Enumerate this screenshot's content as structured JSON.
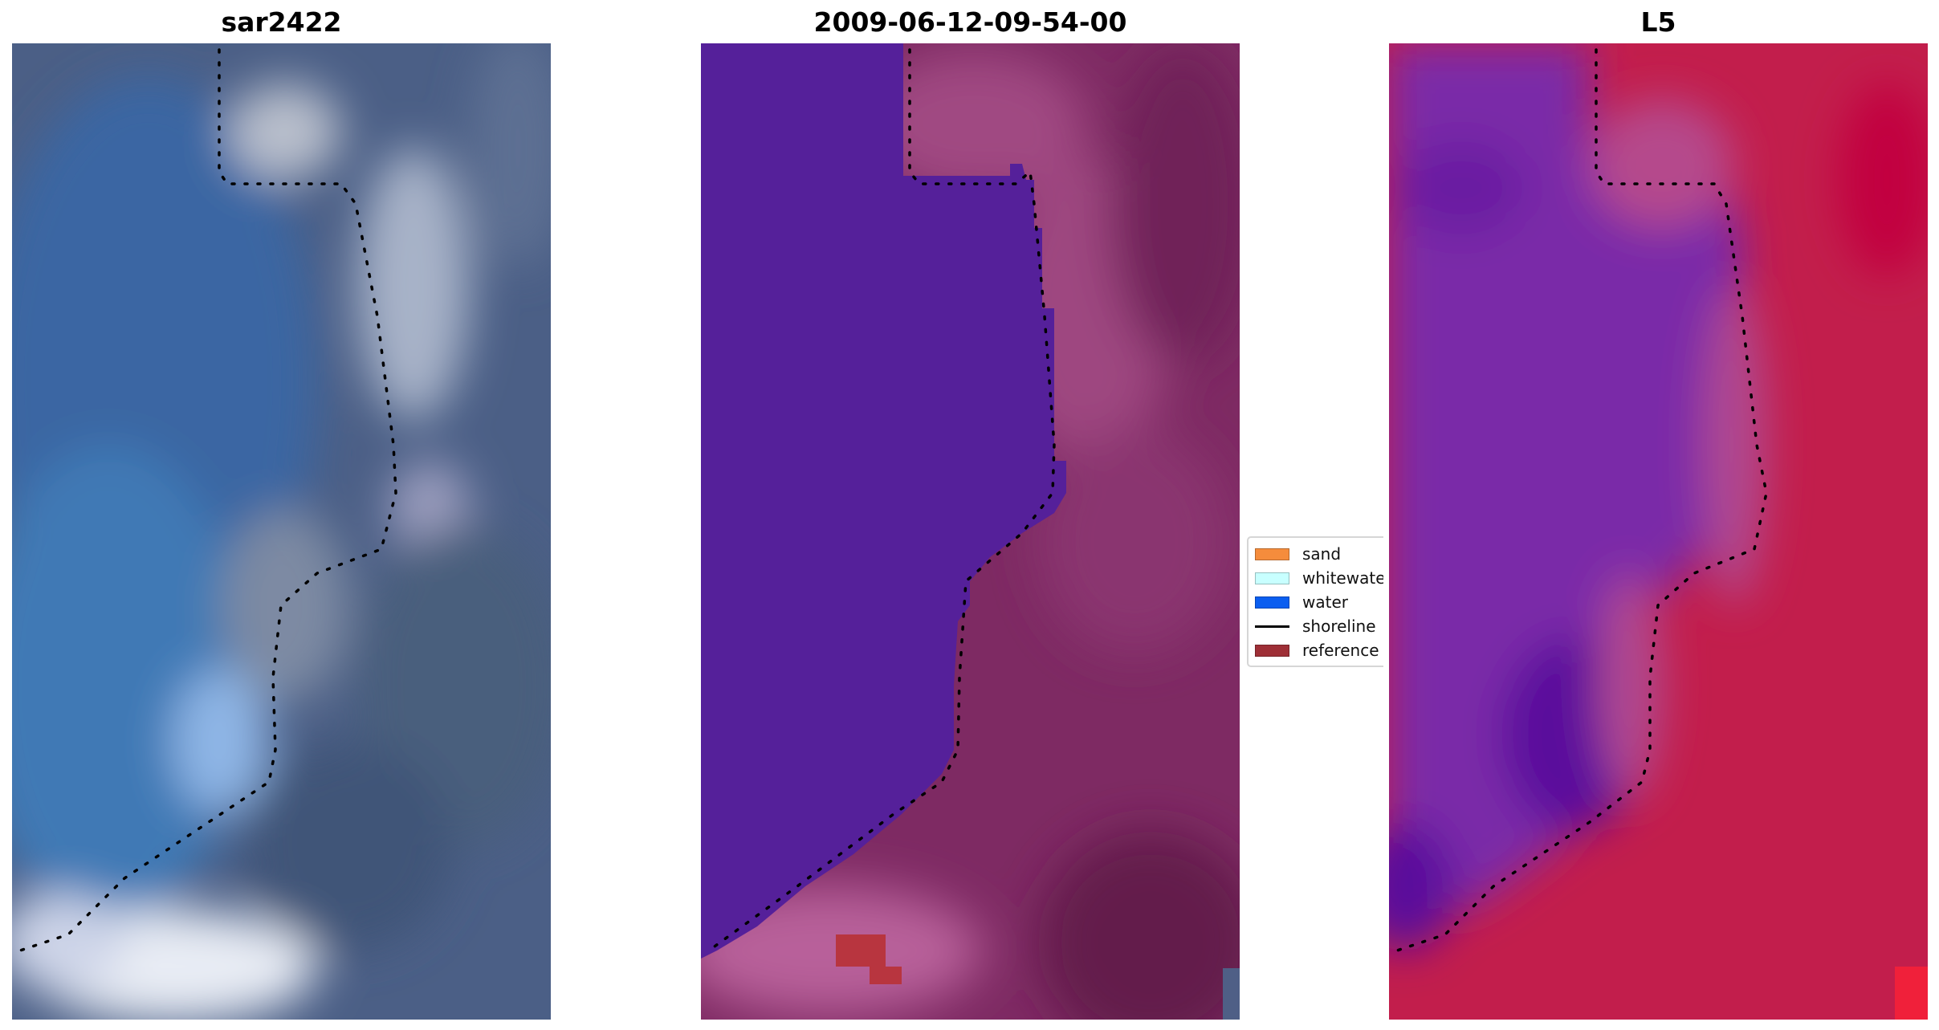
{
  "panels": [
    {
      "title": "sar2422",
      "type": "rgb"
    },
    {
      "title": "2009-06-12-09-54-00",
      "type": "classified"
    },
    {
      "title": "L5",
      "type": "index"
    }
  ],
  "legend": {
    "items": [
      {
        "label": "sand",
        "kind": "patch",
        "color": "#f58c3c"
      },
      {
        "label": "whitewater",
        "kind": "patch",
        "color": "#c8ffff"
      },
      {
        "label": "water",
        "kind": "patch",
        "color": "#0a5ef0"
      },
      {
        "label": "shoreline",
        "kind": "line",
        "color": "#000000"
      },
      {
        "label": "reference shoreline",
        "kind": "patch",
        "color": "#9e2f36"
      }
    ]
  },
  "colors": {
    "water_class": "#55209a",
    "land_tint": "#7e2a63",
    "reference_patch": "#b8353f",
    "index_water": "#6e22a6",
    "index_land": "#c21e4c",
    "shoreline_dots": "#000000"
  }
}
